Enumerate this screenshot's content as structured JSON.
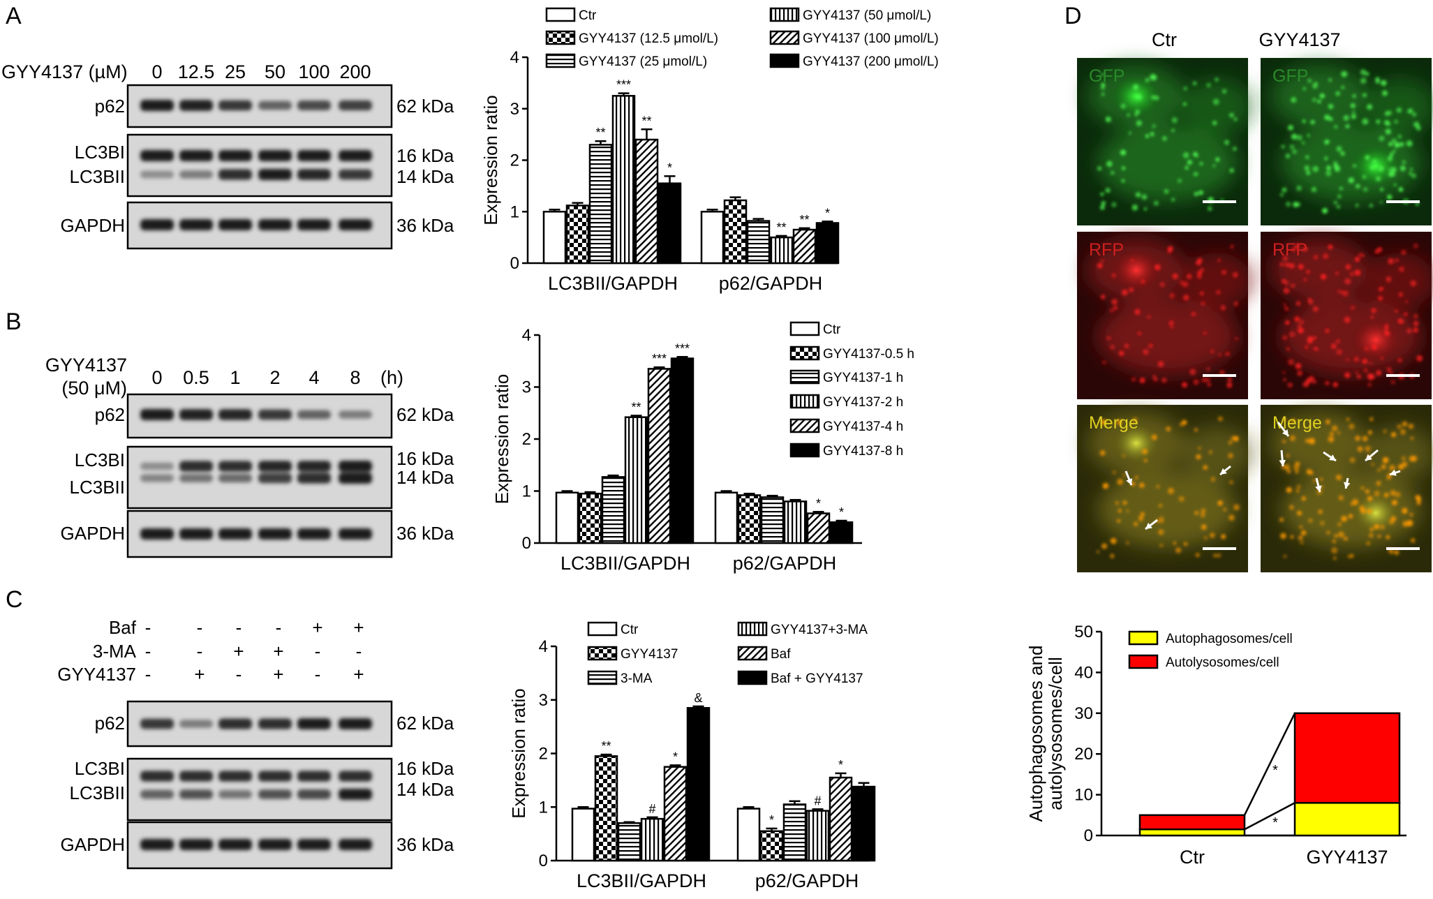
{
  "panels": {
    "A": {
      "letter": "A",
      "blot": {
        "dose_label": "GYY4137 (µM)",
        "lanes": [
          "0",
          "12.5",
          "25",
          "50",
          "100",
          "200"
        ],
        "rows": [
          {
            "labels": [
              "p62"
            ],
            "sizes": [
              "62 kDa"
            ],
            "bands": [
              1.0,
              0.98,
              0.85,
              0.6,
              0.75,
              0.8
            ]
          },
          {
            "labels": [
              "LC3BI",
              "LC3BII"
            ],
            "sizes": [
              "16 kDa",
              "14 kDa"
            ],
            "bands": [
              1,
              1,
              1,
              1,
              1,
              1
            ],
            "bands2": [
              0.35,
              0.45,
              0.9,
              1.0,
              0.95,
              0.85
            ]
          },
          {
            "labels": [
              "GAPDH"
            ],
            "sizes": [
              "36 kDa"
            ],
            "bands": [
              1,
              1,
              1,
              1,
              1,
              1
            ]
          }
        ]
      },
      "chart_data": {
        "type": "bar",
        "categories": [
          "LC3BII/GAPDH",
          "p62/GAPDH"
        ],
        "ylabel": "Expression ratio",
        "ylim": [
          0,
          4
        ],
        "yticks": [
          "0",
          "1",
          "2",
          "3",
          "4"
        ],
        "series": [
          {
            "name": "Ctr",
            "values": [
              1.0,
              1.0
            ],
            "errors": [
              0.04,
              0.04
            ],
            "sig": [
              "",
              ""
            ],
            "pattern": "white"
          },
          {
            "name": "GYY4137 (12.5 μmol/L)",
            "values": [
              1.12,
              1.22
            ],
            "errors": [
              0.05,
              0.06
            ],
            "sig": [
              "",
              ""
            ],
            "pattern": "check"
          },
          {
            "name": "GYY4137 (25 μmol/L)",
            "values": [
              2.3,
              0.82
            ],
            "errors": [
              0.07,
              0.04
            ],
            "sig": [
              "**",
              ""
            ],
            "pattern": "hlines"
          },
          {
            "name": "GYY4137 (50 μmol/L)",
            "values": [
              3.25,
              0.5
            ],
            "errors": [
              0.05,
              0.03
            ],
            "sig": [
              "***",
              "**"
            ],
            "pattern": "vlines"
          },
          {
            "name": "GYY4137 (100 μmol/L)",
            "values": [
              2.4,
              0.65
            ],
            "errors": [
              0.2,
              0.03
            ],
            "sig": [
              "**",
              "**"
            ],
            "pattern": "diag"
          },
          {
            "name": "GYY4137 (200 μmol/L)",
            "values": [
              1.55,
              0.78
            ],
            "errors": [
              0.14,
              0.03
            ],
            "sig": [
              "*",
              "*"
            ],
            "pattern": "black"
          }
        ]
      }
    },
    "B": {
      "letter": "B",
      "blot": {
        "dose_label_line1": "GYY4137",
        "dose_label_line2": "(50 μM)",
        "lanes": [
          "0",
          "0.5",
          "1",
          "2",
          "4",
          "8"
        ],
        "unit": "(h)",
        "rows": [
          {
            "labels": [
              "p62"
            ],
            "sizes": [
              "62 kDa"
            ],
            "bands": [
              1.0,
              0.98,
              0.95,
              0.85,
              0.6,
              0.45
            ]
          },
          {
            "labels": [
              "LC3BI",
              "LC3BII"
            ],
            "sizes": [
              "16 kDa",
              "14 kDa"
            ],
            "bands": [
              0.35,
              0.9,
              0.9,
              0.95,
              0.95,
              1.0
            ],
            "bands2": [
              0.4,
              0.5,
              0.55,
              0.8,
              0.9,
              1.0
            ]
          },
          {
            "labels": [
              "GAPDH"
            ],
            "sizes": [
              "36 kDa"
            ],
            "bands": [
              1,
              1,
              1,
              1,
              1,
              1
            ]
          }
        ]
      },
      "chart_data": {
        "type": "bar",
        "categories": [
          "LC3BII/GAPDH",
          "p62/GAPDH"
        ],
        "ylabel": "Expression ratio",
        "ylim": [
          0,
          4
        ],
        "yticks": [
          "0",
          "1",
          "2",
          "3",
          "4"
        ],
        "series": [
          {
            "name": "Ctr",
            "values": [
              0.97,
              0.97
            ],
            "errors": [
              0.03,
              0.03
            ],
            "sig": [
              "",
              ""
            ],
            "pattern": "white"
          },
          {
            "name": "GYY4137-0.5 h",
            "values": [
              0.95,
              0.92
            ],
            "errors": [
              0.03,
              0.03
            ],
            "sig": [
              "",
              ""
            ],
            "pattern": "check"
          },
          {
            "name": "GYY4137-1 h",
            "values": [
              1.27,
              0.88
            ],
            "errors": [
              0.03,
              0.03
            ],
            "sig": [
              "",
              ""
            ],
            "pattern": "hlines"
          },
          {
            "name": "GYY4137-2 h",
            "values": [
              2.42,
              0.8
            ],
            "errors": [
              0.03,
              0.03
            ],
            "sig": [
              "**",
              ""
            ],
            "pattern": "vlines"
          },
          {
            "name": "GYY4137-4 h",
            "values": [
              3.35,
              0.57
            ],
            "errors": [
              0.03,
              0.03
            ],
            "sig": [
              "***",
              "*"
            ],
            "pattern": "diag"
          },
          {
            "name": "GYY4137-8 h",
            "values": [
              3.55,
              0.4
            ],
            "errors": [
              0.03,
              0.03
            ],
            "sig": [
              "***",
              "*"
            ],
            "pattern": "black"
          }
        ]
      }
    },
    "C": {
      "letter": "C",
      "blot": {
        "treatments": [
          {
            "name": "Baf",
            "marks": [
              "-",
              "-",
              "-",
              "-",
              "+",
              "+"
            ]
          },
          {
            "name": "3-MA",
            "marks": [
              "-",
              "-",
              "+",
              "+",
              "-",
              "-"
            ]
          },
          {
            "name": "GYY4137",
            "marks": [
              "-",
              "+",
              "-",
              "+",
              "-",
              "+"
            ]
          }
        ],
        "rows": [
          {
            "labels": [
              "p62"
            ],
            "sizes": [
              "62 kDa"
            ],
            "bands": [
              0.85,
              0.45,
              0.9,
              0.9,
              1.0,
              1.0
            ]
          },
          {
            "labels": [
              "LC3BI",
              "LC3BII"
            ],
            "sizes": [
              "16 kDa",
              "14 kDa"
            ],
            "bands": [
              0.9,
              0.9,
              0.9,
              0.9,
              0.9,
              0.9
            ],
            "bands2": [
              0.6,
              0.7,
              0.5,
              0.7,
              0.75,
              1.0
            ]
          },
          {
            "labels": [
              "GAPDH"
            ],
            "sizes": [
              "36 kDa"
            ],
            "bands": [
              1,
              1,
              1,
              1,
              1,
              1
            ]
          }
        ]
      },
      "chart_data": {
        "type": "bar",
        "categories": [
          "LC3BII/GAPDH",
          "p62/GAPDH"
        ],
        "ylabel": "Expression ratio",
        "ylim": [
          0,
          4
        ],
        "yticks": [
          "0",
          "1",
          "2",
          "3",
          "4"
        ],
        "series": [
          {
            "name": "Ctr",
            "values": [
              0.97,
              0.97
            ],
            "errors": [
              0.03,
              0.03
            ],
            "sig": [
              "",
              ""
            ],
            "pattern": "white"
          },
          {
            "name": "GYY4137",
            "values": [
              1.95,
              0.55
            ],
            "errors": [
              0.03,
              0.05
            ],
            "sig": [
              "**",
              "*"
            ],
            "pattern": "check"
          },
          {
            "name": "3-MA",
            "values": [
              0.7,
              1.05
            ],
            "errors": [
              0.02,
              0.06
            ],
            "sig": [
              "",
              ""
            ],
            "pattern": "hlines"
          },
          {
            "name": "GYY4137+3-MA",
            "values": [
              0.78,
              0.93
            ],
            "errors": [
              0.03,
              0.03
            ],
            "sig": [
              "#",
              "#"
            ],
            "pattern": "vlines"
          },
          {
            "name": "Baf",
            "values": [
              1.75,
              1.55
            ],
            "errors": [
              0.03,
              0.08
            ],
            "sig": [
              "*",
              "*"
            ],
            "pattern": "diag"
          },
          {
            "name": "Baf + GYY4137",
            "values": [
              2.85,
              1.38
            ],
            "errors": [
              0.03,
              0.07
            ],
            "sig": [
              "&",
              ""
            ],
            "pattern": "black"
          }
        ]
      }
    },
    "D": {
      "letter": "D",
      "columns": [
        "Ctr",
        "GYY4137"
      ],
      "channel_labels": [
        "GFP",
        "RFP",
        "Merge"
      ],
      "chart_data": {
        "type": "bar",
        "categories": [
          "Ctr",
          "GYY4137"
        ],
        "ylabel": "Autophagosomes and autolysosomes/cell",
        "ylabel_lines": [
          "Autophagosomes and",
          "autolysosomes/cell"
        ],
        "ylim": [
          0,
          50
        ],
        "yticks": [
          "0",
          "10",
          "20",
          "30",
          "40",
          "50"
        ],
        "stacked": true,
        "series": [
          {
            "name": "Autophagosomes/cell",
            "values": [
              1.5,
              8
            ],
            "color": "#ffff00"
          },
          {
            "name": "Autolysosomes/cell",
            "values": [
              3.5,
              22
            ],
            "color": "#ff0000"
          }
        ],
        "sig": [
          "*",
          "*"
        ]
      }
    }
  }
}
